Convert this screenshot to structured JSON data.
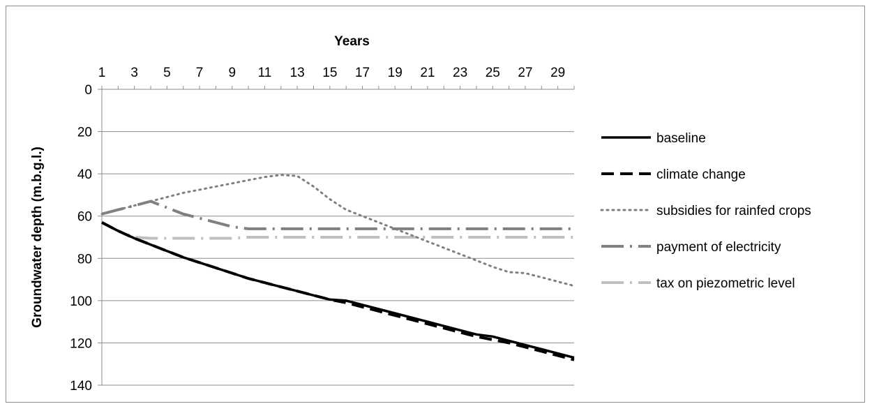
{
  "chart_data": {
    "type": "line",
    "title": "",
    "xlabel": "Years",
    "ylabel": "Groundwater depth (m.b.g.l.)",
    "x_axis_position": "top",
    "y_axis_inverted": true,
    "x_tick_labels": [
      "1",
      "3",
      "5",
      "7",
      "9",
      "11",
      "13",
      "15",
      "17",
      "19",
      "21",
      "23",
      "25",
      "27",
      "29"
    ],
    "y_tick_labels": [
      "0",
      "20",
      "40",
      "60",
      "80",
      "100",
      "120",
      "140"
    ],
    "xlim": [
      1,
      30
    ],
    "ylim": [
      0,
      140
    ],
    "grid": "horizontal",
    "legend_position": "right",
    "x": [
      1,
      2,
      3,
      4,
      5,
      6,
      7,
      8,
      9,
      10,
      11,
      12,
      13,
      14,
      15,
      16,
      17,
      18,
      19,
      20,
      21,
      22,
      23,
      24,
      25,
      26,
      27,
      28,
      29,
      30
    ],
    "series": [
      {
        "name": "baseline",
        "style": "solid",
        "color": "#000000",
        "values": [
          63,
          67,
          70.5,
          73.5,
          76.5,
          79.5,
          82,
          84.5,
          87,
          89.5,
          91.5,
          93.5,
          95.5,
          97.5,
          99.5,
          100,
          102,
          104,
          106,
          108,
          110,
          112,
          114,
          116,
          117,
          119,
          121,
          123,
          125,
          127
        ]
      },
      {
        "name": "climate change",
        "style": "dashed",
        "color": "#000000",
        "values": [
          63,
          67,
          70.5,
          73.5,
          76.5,
          79.5,
          82,
          84.5,
          87,
          89.5,
          91.5,
          93.5,
          95.5,
          97.5,
          99.5,
          101,
          103,
          105,
          107,
          109,
          111,
          113,
          115,
          117,
          118.5,
          120,
          122,
          124,
          126,
          128
        ]
      },
      {
        "name": "subsidies for rainfed crops",
        "style": "dotted",
        "color": "#7f7f7f",
        "values": [
          59,
          57,
          55,
          53,
          51,
          49,
          47.5,
          46,
          44.5,
          43,
          41.5,
          40.5,
          41,
          46,
          52,
          57,
          60,
          63,
          66,
          69,
          72,
          75,
          78,
          81,
          84,
          86.5,
          87,
          89,
          91,
          93
        ]
      },
      {
        "name": "payment of electricity",
        "style": "longdash-dot",
        "color": "#808080",
        "values": [
          59,
          57,
          55,
          53,
          56,
          59,
          61,
          63,
          65,
          66,
          66,
          66,
          66,
          66,
          66,
          66,
          66,
          66,
          66,
          66,
          66,
          66,
          66,
          66,
          66,
          66,
          66,
          66,
          66,
          66
        ]
      },
      {
        "name": "tax on piezometric level",
        "style": "longdash-dot-light",
        "color": "#bfbfbf",
        "values": [
          63,
          67,
          70,
          70.5,
          70.5,
          70.5,
          70.5,
          70.5,
          70.5,
          70,
          70,
          70,
          70,
          70,
          70,
          70,
          70,
          70,
          70,
          70,
          70,
          70,
          70,
          70,
          70,
          70,
          70,
          70,
          70,
          70
        ]
      }
    ]
  }
}
